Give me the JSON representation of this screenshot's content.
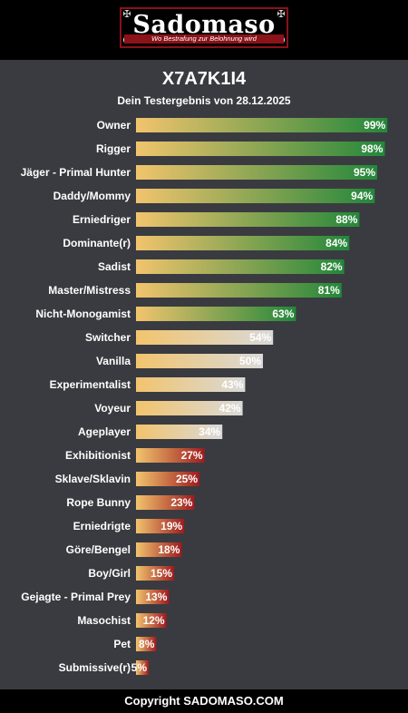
{
  "header": {
    "logo_name": "Sadomaso",
    "logo_tagline": "Wo Bestrafung zur Belohnung wird"
  },
  "colors": {
    "bar_start": "#f2c46d",
    "high": "#23873a",
    "mid": "#d9d9d9",
    "low": "#9e1b1f",
    "background": "#3a3b40",
    "header_bg": "#000000",
    "logo_accent": "#8a1218"
  },
  "chart_data": {
    "type": "bar",
    "orientation": "horizontal",
    "title": "X7A7K1I4",
    "subtitle": "Dein Testergebnis von 28.12.2025",
    "xlim": [
      0,
      100
    ],
    "unit": "%",
    "categories": [
      "Owner",
      "Rigger",
      "Jäger - Primal Hunter",
      "Daddy/Mommy",
      "Erniedriger",
      "Dominante(r)",
      "Sadist",
      "Master/Mistress",
      "Nicht-Monogamist",
      "Switcher",
      "Vanilla",
      "Experimentalist",
      "Voyeur",
      "Ageplayer",
      "Exhibitionist",
      "Sklave/Sklavin",
      "Rope Bunny",
      "Erniedrigte",
      "Göre/Bengel",
      "Boy/Girl",
      "Gejagte - Primal Prey",
      "Masochist",
      "Pet",
      "Submissive(r)"
    ],
    "values": [
      99,
      98,
      95,
      94,
      88,
      84,
      82,
      81,
      63,
      54,
      50,
      43,
      42,
      34,
      27,
      25,
      23,
      19,
      18,
      15,
      13,
      12,
      8,
      5
    ]
  },
  "footer": {
    "text": "Copyright SADOMASO.COM"
  }
}
